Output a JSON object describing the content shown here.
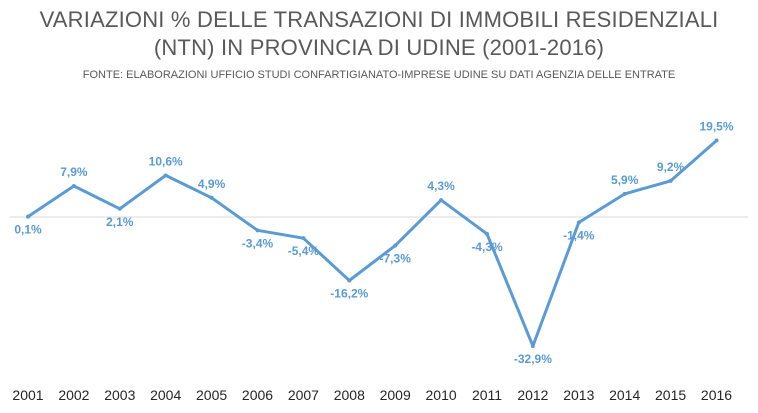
{
  "chart_data": {
    "type": "line",
    "title_line1": "VARIAZIONI % DELLE TRANSAZIONI DI IMMOBILI RESIDENZIALI",
    "title_line2": "(NTN) IN PROVINCIA DI UDINE (2001-2016)",
    "subtitle": "FONTE: ELABORAZIONI UFFICIO STUDI CONFARTIGIANATO-IMPRESE UDINE SU DATI AGENZIA DELLE ENTRATE",
    "categories": [
      "2001",
      "2002",
      "2003",
      "2004",
      "2005",
      "2006",
      "2007",
      "2008",
      "2009",
      "2010",
      "2011",
      "2012",
      "2013",
      "2014",
      "2015",
      "2016"
    ],
    "values": [
      0.1,
      7.9,
      2.1,
      10.6,
      4.9,
      -3.4,
      -5.4,
      -16.2,
      -7.3,
      4.3,
      -4.3,
      -32.9,
      -1.4,
      5.9,
      9.2,
      19.5
    ],
    "data_labels": [
      "0,1%",
      "7,9%",
      "2,1%",
      "10,6%",
      "4,9%",
      "-3,4%",
      "-5,4%",
      "-16,2%",
      "-7,3%",
      "4,3%",
      "-4,3%",
      "-32,9%",
      "-1,4%",
      "5,9%",
      "9,2%",
      "19,5%"
    ],
    "line_color": "#5b9bd5",
    "zero_line": true,
    "grid": false,
    "legend": "none"
  }
}
